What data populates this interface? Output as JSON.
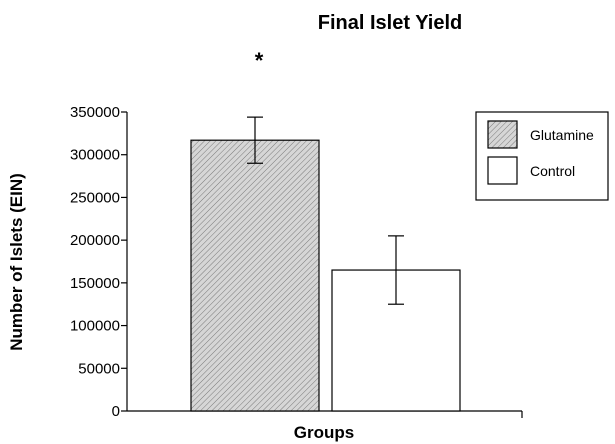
{
  "chart_data": {
    "type": "bar",
    "title": "Final Islet Yield",
    "xlabel": "Groups",
    "ylabel": "Number of Islets (EIN)",
    "ylim": [
      0,
      350000
    ],
    "yticks": [
      0,
      50000,
      100000,
      150000,
      200000,
      250000,
      300000,
      350000
    ],
    "series": [
      {
        "name": "Glutamine",
        "value": 317000,
        "error": 27000,
        "fill": "hatched-gray",
        "color": "#d4d4d4"
      },
      {
        "name": "Control",
        "value": 165000,
        "error": 40000,
        "fill": "white",
        "color": "#ffffff"
      }
    ],
    "annotations": [
      {
        "text": "*",
        "series": "Glutamine"
      }
    ],
    "legend_position": "top-right",
    "grid": false
  }
}
